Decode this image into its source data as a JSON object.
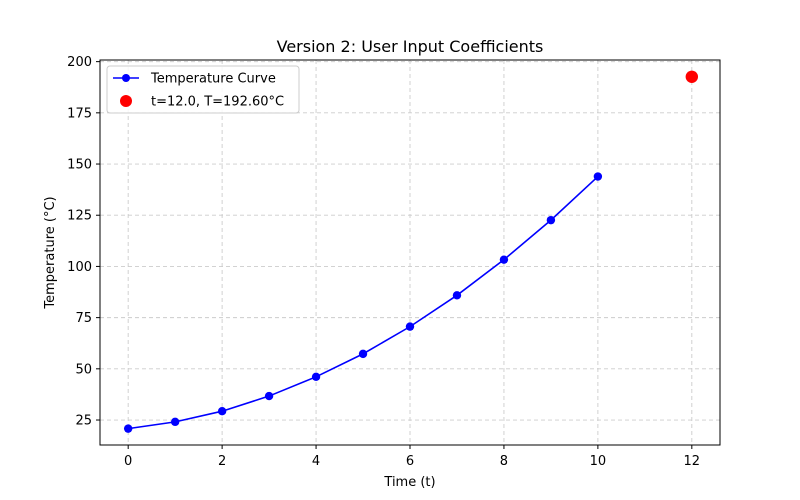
{
  "chart_data": {
    "type": "line",
    "title": "Version 2: User Input Coefficients",
    "xlabel": "Time (t)",
    "ylabel": "Temperature (°C)",
    "xlim": [
      -0.6,
      12.6
    ],
    "ylim": [
      12.8,
      200.8
    ],
    "xticks": [
      0,
      2,
      4,
      6,
      8,
      10,
      12
    ],
    "yticks": [
      25,
      50,
      75,
      100,
      125,
      150,
      175,
      200
    ],
    "grid": true,
    "legend_position": "upper-left",
    "series": [
      {
        "name": "Temperature Curve",
        "kind": "line-marker",
        "color": "#0000ff",
        "x": [
          0,
          1,
          2,
          3,
          4,
          5,
          6,
          7,
          8,
          9,
          10
        ],
        "y": [
          20.8,
          24.1,
          29.3,
          36.7,
          46.1,
          57.3,
          70.6,
          85.9,
          103.3,
          122.6,
          143.9
        ]
      },
      {
        "name": "t=12.0, T=192.60°C",
        "kind": "point",
        "color": "#ff0000",
        "x": [
          12.0
        ],
        "y": [
          192.6
        ]
      }
    ]
  }
}
